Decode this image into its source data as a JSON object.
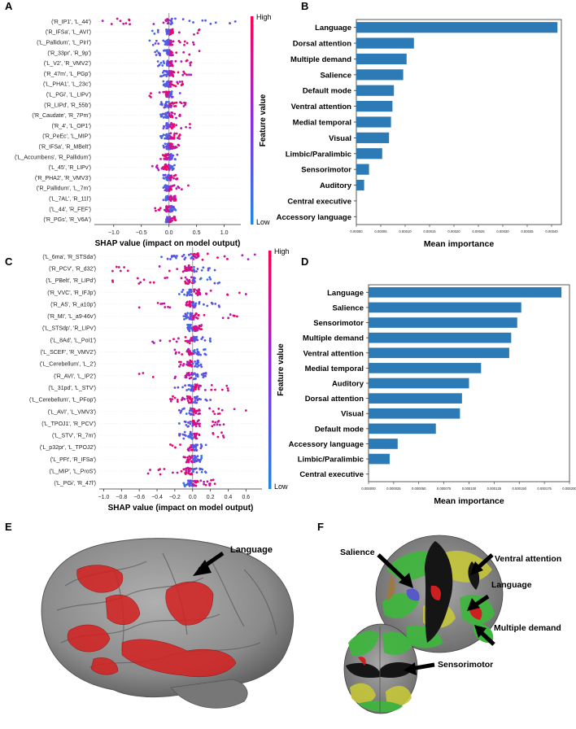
{
  "panel_letters": {
    "a": "A",
    "b": "B",
    "c": "C",
    "d": "D",
    "e": "E",
    "f": "F"
  },
  "colors": {
    "bar": "#2c7bb6",
    "high": "#ff0052",
    "low": "#1e88e5",
    "brain": "#8a8a8a",
    "red": "#d42020"
  },
  "chart_data": [
    {
      "id": "A",
      "type": "scatter",
      "subtype": "shap-beeswarm",
      "xlabel": "SHAP value (impact on model output)",
      "xlim": [
        -1.35,
        1.3
      ],
      "xticks": [
        -1.0,
        -0.5,
        0.0,
        0.5,
        1.0
      ],
      "xtick_labels": [
        "−1.0",
        "−0.5",
        "0.0",
        "0.5",
        "1.0"
      ],
      "colorbar": {
        "high": "High",
        "low": "Low",
        "label": "Feature value"
      },
      "features": [
        {
          "label": "('R_IP1', 'L_44')",
          "min": -1.2,
          "max": 1.2
        },
        {
          "label": "('R_IFSa', 'L_AVI')",
          "min": -0.3,
          "max": 0.55
        },
        {
          "label": "('L_Pallidum', 'L_PirI')",
          "min": -0.35,
          "max": 0.45
        },
        {
          "label": "('R_33pr', 'R_9p')",
          "min": -0.25,
          "max": 0.55
        },
        {
          "label": "('L_V2', 'R_VMV2')",
          "min": -0.2,
          "max": 0.4
        },
        {
          "label": "('R_47m', 'L_PGp')",
          "min": -0.15,
          "max": 0.4
        },
        {
          "label": "('L_PHA1', 'L_23c')",
          "min": -0.1,
          "max": 0.25
        },
        {
          "label": "('L_PGi', 'L_LIPv')",
          "min": -0.35,
          "max": 0.2
        },
        {
          "label": "('R_LIPd', 'R_55b')",
          "min": -0.15,
          "max": 0.3
        },
        {
          "label": "('R_Caudate', 'R_7Pm')",
          "min": -0.15,
          "max": 0.2
        },
        {
          "label": "('R_4', 'L_OP1')",
          "min": -0.1,
          "max": 0.38
        },
        {
          "label": "('R_PeEc', 'L_MIP')",
          "min": -0.15,
          "max": 0.2
        },
        {
          "label": "('R_IFSa', 'R_MBelt')",
          "min": -0.1,
          "max": 0.18
        },
        {
          "label": "('L_Accumbens', 'R_Pallidum')",
          "min": -0.15,
          "max": 0.15
        },
        {
          "label": "('L_45', 'R_LIPv')",
          "min": -0.3,
          "max": 0.1
        },
        {
          "label": "('R_PHA2', 'R_VMV3')",
          "min": -0.1,
          "max": 0.15
        },
        {
          "label": "('R_Pallidum', 'L_7m')",
          "min": -0.1,
          "max": 0.35
        },
        {
          "label": "('L_7AL', 'R_11l')",
          "min": -0.1,
          "max": 0.12
        },
        {
          "label": "('L_44', 'R_FEF')",
          "min": -0.25,
          "max": 0.12
        },
        {
          "label": "('R_PGs', 'R_V6A')",
          "min": -0.05,
          "max": 0.12
        }
      ]
    },
    {
      "id": "B",
      "type": "bar",
      "orientation": "horizontal",
      "xlabel": "Mean importance",
      "xlim": [
        0,
        0.00042
      ],
      "xticks": [
        0,
        5e-05,
        0.0001,
        0.00015,
        0.0002,
        0.00025,
        0.0003,
        0.00035,
        0.0004
      ],
      "xtick_labels": [
        "0.00000",
        "0.00005",
        "0.00010",
        "0.00015",
        "0.00020",
        "0.00025",
        "0.00030",
        "0.00035",
        "0.00040"
      ],
      "categories": [
        "Language",
        "Dorsal attention",
        "Multiple demand",
        "Salience",
        "Default mode",
        "Ventral attention",
        "Medial temporal",
        "Visual",
        "Limbic/Paralimbic",
        "Sensorimotor",
        "Auditory",
        "Central executive",
        "Accessory language"
      ],
      "values": [
        0.000412,
        0.000118,
        0.000103,
        9.6e-05,
        7.7e-05,
        7.4e-05,
        7.1e-05,
        6.7e-05,
        5.3e-05,
        2.6e-05,
        1.6e-05,
        0.0,
        0.0
      ]
    },
    {
      "id": "C",
      "type": "scatter",
      "subtype": "shap-beeswarm",
      "xlabel": "SHAP value (impact on model output)",
      "xlim": [
        -1.05,
        0.78
      ],
      "xticks": [
        -1.0,
        -0.8,
        -0.6,
        -0.4,
        -0.2,
        0.0,
        0.2,
        0.4,
        0.6
      ],
      "xtick_labels": [
        "−1.0",
        "−0.8",
        "−0.6",
        "−0.4",
        "−0.2",
        "0.0",
        "0.2",
        "0.4",
        "0.6"
      ],
      "colorbar": {
        "high": "High",
        "low": "Low",
        "label": "Feature value"
      },
      "features": [
        {
          "label": "('L_6ma', 'R_STSda')",
          "min": -0.35,
          "max": 0.7
        },
        {
          "label": "('R_PCV', 'R_d32')",
          "min": -0.9,
          "max": 0.25
        },
        {
          "label": "('L_PBelt', 'R_LIPd')",
          "min": -0.9,
          "max": 0.3
        },
        {
          "label": "('R_VVC', 'R_IFJp')",
          "min": -0.15,
          "max": 0.6
        },
        {
          "label": "('R_A5', 'R_a10p')",
          "min": -0.6,
          "max": 0.3
        },
        {
          "label": "('R_MI', 'L_a9-46v')",
          "min": -0.1,
          "max": 0.5
        },
        {
          "label": "('L_STSdp', 'R_LIPv')",
          "min": -0.05,
          "max": 0.1
        },
        {
          "label": "('L_8Ad', 'L_PoI1')",
          "min": -0.45,
          "max": 0.2
        },
        {
          "label": "('L_SCEF', 'R_VMV2')",
          "min": -0.2,
          "max": 0.15
        },
        {
          "label": "('L_Cerebellum', 'L_2')",
          "min": -0.15,
          "max": 0.1
        },
        {
          "label": "('R_AVI', 'L_IP2')",
          "min": -0.6,
          "max": 0.15
        },
        {
          "label": "('L_31pd', 'L_STV')",
          "min": -0.2,
          "max": 0.4
        },
        {
          "label": "('L_Cerebellum', 'L_PFop')",
          "min": -0.25,
          "max": 0.2
        },
        {
          "label": "('L_AVI', 'L_VMV3')",
          "min": -0.15,
          "max": 0.6
        },
        {
          "label": "('L_TPOJ1', 'R_PCV')",
          "min": -0.15,
          "max": 0.35
        },
        {
          "label": "('L_STV', 'R_7m')",
          "min": -0.15,
          "max": 0.35
        },
        {
          "label": "('L_p32pr', 'L_TPOJ2')",
          "min": -0.25,
          "max": 0.15
        },
        {
          "label": "('L_PFt', 'R_IFSa')",
          "min": -0.1,
          "max": 0.1
        },
        {
          "label": "('L_MIP', 'L_ProS')",
          "min": -0.5,
          "max": 0.15
        },
        {
          "label": "('L_PGi', 'R_47l')",
          "min": -0.1,
          "max": 0.25
        }
      ]
    },
    {
      "id": "D",
      "type": "bar",
      "orientation": "horizontal",
      "xlabel": "Mean importance",
      "xlim": [
        0,
        0.0002
      ],
      "xticks": [
        0,
        2.5e-05,
        5e-05,
        7.5e-05,
        0.0001,
        0.000125,
        0.00015,
        0.000175,
        0.0002
      ],
      "xtick_labels": [
        "0.000000",
        "0.000025",
        "0.000050",
        "0.000075",
        "0.000100",
        "0.000125",
        "0.000150",
        "0.000175",
        "0.000200"
      ],
      "categories": [
        "Language",
        "Salience",
        "Sensorimotor",
        "Multiple demand",
        "Ventral attention",
        "Medial temporal",
        "Auditory",
        "Dorsal attention",
        "Visual",
        "Default mode",
        "Accessory language",
        "Limbic/Paralimbic",
        "Central executive"
      ],
      "values": [
        0.000192,
        0.000152,
        0.000148,
        0.000142,
        0.00014,
        0.000112,
        0.0001,
        9.3e-05,
        9.1e-05,
        6.7e-05,
        2.9e-05,
        2.1e-05,
        0.0
      ]
    }
  ],
  "panel_e": {
    "annotation": "Language"
  },
  "panel_f": {
    "annotations": [
      "Salience",
      "Ventral attention",
      "Language",
      "Multiple demand",
      "Sensorimotor"
    ]
  }
}
